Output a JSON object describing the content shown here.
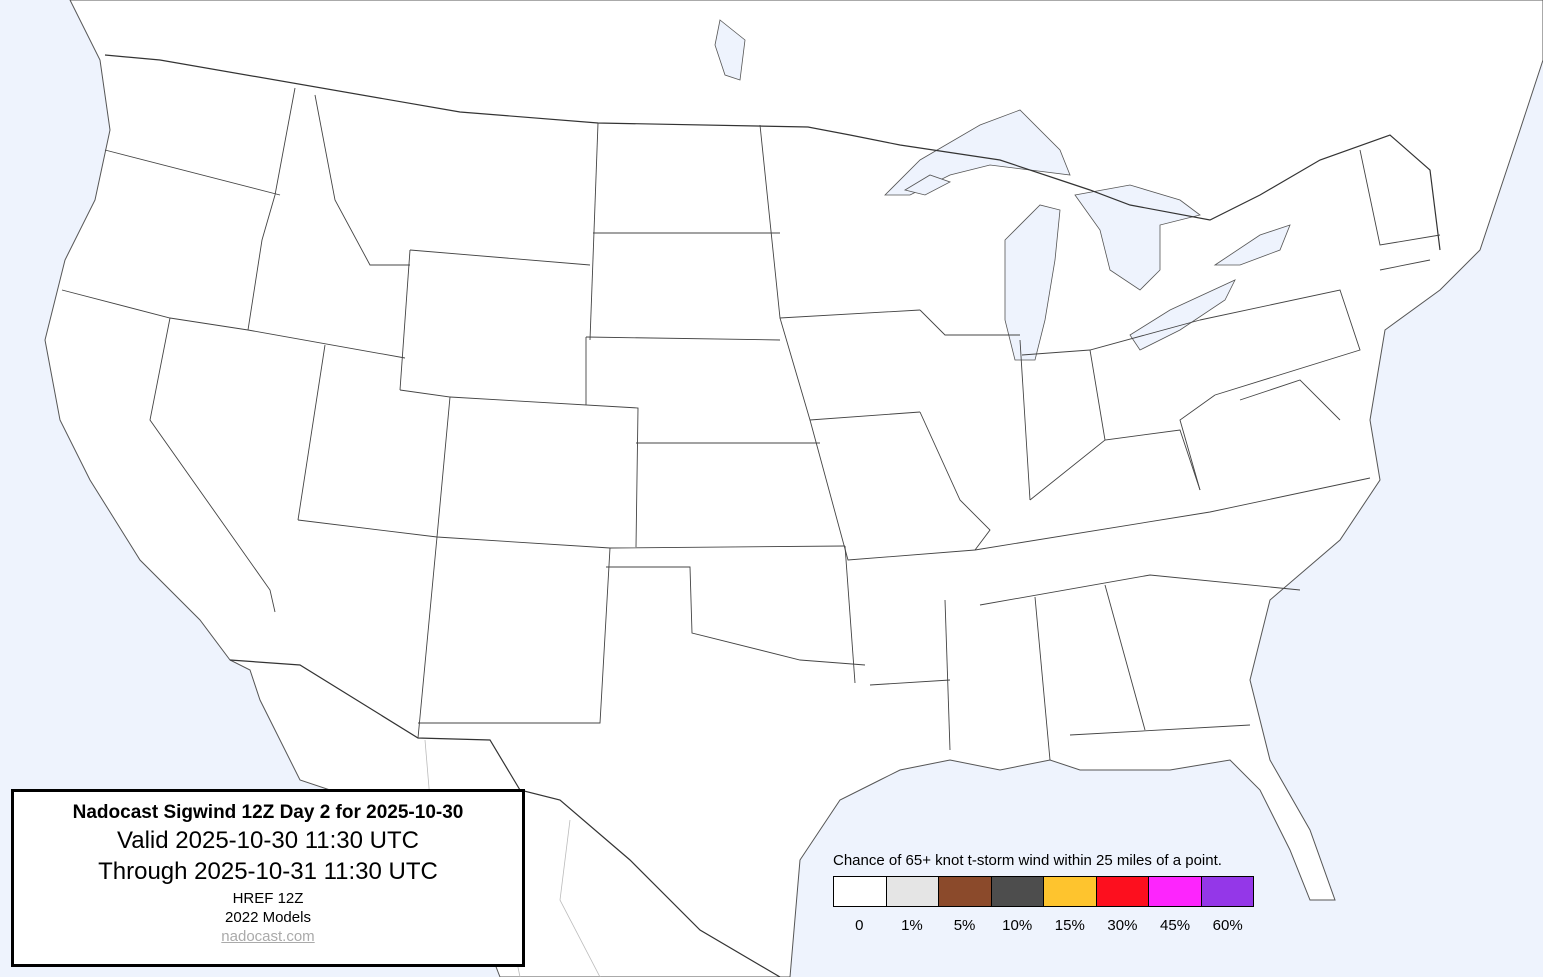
{
  "title_box": {
    "title": "Nadocast Sigwind 12Z Day 2 for 2025-10-30",
    "valid": "Valid 2025-10-30 11:30 UTC",
    "through": "Through 2025-10-31 11:30 UTC",
    "model": "HREF 12Z",
    "model_version": "2022 Models",
    "link": "nadocast.com"
  },
  "legend": {
    "caption": "Chance of 65+ knot t-storm wind within 25 miles of a point.",
    "bins": [
      {
        "label": "0",
        "color": "#ffffff"
      },
      {
        "label": "1%",
        "color": "#e5e5e5"
      },
      {
        "label": "5%",
        "color": "#8b4a2b"
      },
      {
        "label": "10%",
        "color": "#4d4d4d"
      },
      {
        "label": "15%",
        "color": "#fec42e"
      },
      {
        "label": "30%",
        "color": "#fd0f1e"
      },
      {
        "label": "45%",
        "color": "#fd25fd"
      },
      {
        "label": "60%",
        "color": "#9437e8"
      }
    ]
  },
  "map": {
    "water_color": "#eef3fd",
    "land_color": "#ffffff",
    "probability_areas": []
  }
}
